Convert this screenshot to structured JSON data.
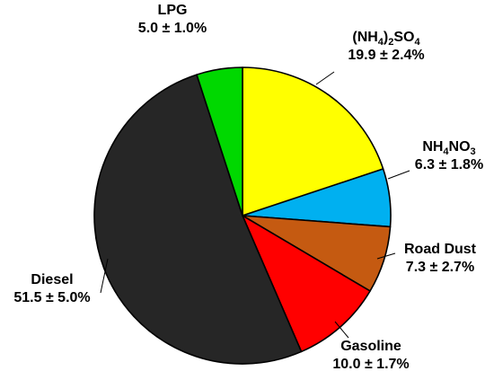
{
  "chart_data": {
    "type": "pie",
    "start_angle_deg": 0,
    "direction": "clockwise",
    "slices": [
      {
        "label": "(NH4)2SO4",
        "label_parts": [
          [
            "(NH",
            ""
          ],
          [
            "4",
            "sub"
          ],
          [
            ")",
            ""
          ],
          [
            "2",
            "sub"
          ],
          [
            "SO",
            ""
          ],
          [
            "4",
            "sub"
          ]
        ],
        "value": 19.9,
        "uncertainty": 2.4,
        "value_text": "19.9 ± 2.4%",
        "color": "#ffff00"
      },
      {
        "label": "NH4NO3",
        "label_parts": [
          [
            "NH",
            ""
          ],
          [
            "4",
            "sub"
          ],
          [
            "NO",
            ""
          ],
          [
            "3",
            "sub"
          ]
        ],
        "value": 6.3,
        "uncertainty": 1.8,
        "value_text": "6.3 ± 1.8%",
        "color": "#00b0f0"
      },
      {
        "label": "Road Dust",
        "label_parts": [
          [
            "Road Dust",
            ""
          ]
        ],
        "value": 7.3,
        "uncertainty": 2.7,
        "value_text": "7.3 ± 2.7%",
        "color": "#c55a11"
      },
      {
        "label": "Gasoline",
        "label_parts": [
          [
            "Gasoline",
            ""
          ]
        ],
        "value": 10.0,
        "uncertainty": 1.7,
        "value_text": "10.0 ± 1.7%",
        "color": "#ff0000"
      },
      {
        "label": "Diesel",
        "label_parts": [
          [
            "Diesel",
            ""
          ]
        ],
        "value": 51.5,
        "uncertainty": 5.0,
        "value_text": "51.5 ± 5.0%",
        "color": "#262626"
      },
      {
        "label": "LPG",
        "label_parts": [
          [
            "LPG",
            ""
          ]
        ],
        "value": 5.0,
        "uncertainty": 1.0,
        "value_text": "5.0 ± 1.0%",
        "color": "#00d800"
      }
    ]
  }
}
